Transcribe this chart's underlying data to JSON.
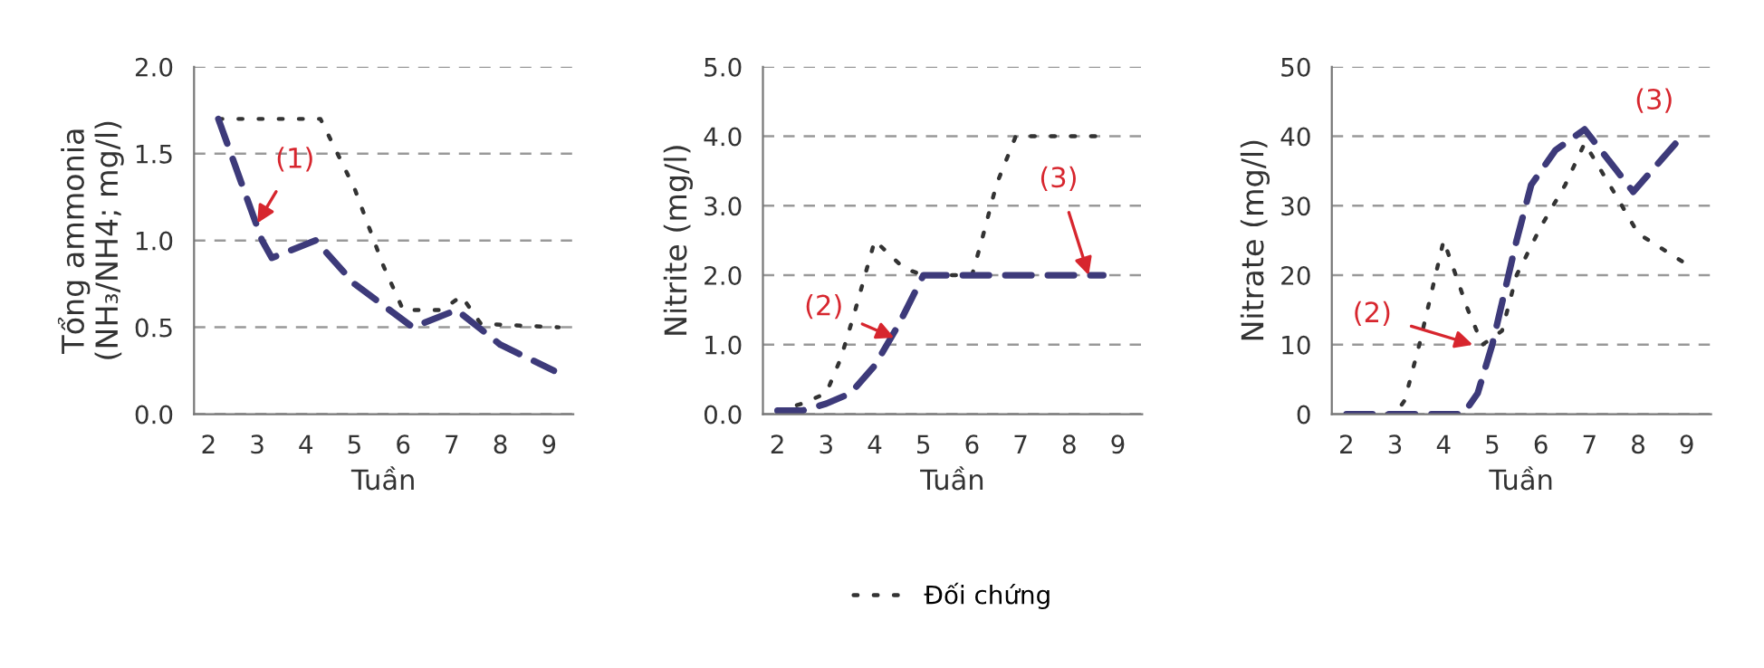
{
  "chart_data": [
    {
      "type": "line",
      "xlabel": "Tuần",
      "ylabel": "Tổng ammonia\n(NH₃/NH4; mg/l)",
      "xlim": [
        1.7,
        9.5
      ],
      "xticks": [
        2,
        3,
        4,
        5,
        6,
        7,
        8,
        9
      ],
      "ylim": [
        0,
        2
      ],
      "yticks": [
        {
          "value": 0,
          "label": "0.0"
        },
        {
          "value": 0.5,
          "label": "0.5"
        },
        {
          "value": 1,
          "label": "1.0"
        },
        {
          "value": 1.5,
          "label": "1.5"
        },
        {
          "value": 2,
          "label": "2.0"
        }
      ],
      "grid": "y",
      "legend": false,
      "annotations": [
        {
          "text": "(1)",
          "x": 3,
          "y": 1.1
        }
      ],
      "series": [
        {
          "color": "#333333",
          "line_style": "dotted",
          "x": [
            2.2,
            4.3,
            5,
            5.6,
            6.0,
            6.8,
            7.2,
            7.6,
            9.2
          ],
          "values": [
            1.7,
            1.7,
            1.3,
            0.85,
            0.6,
            0.6,
            0.68,
            0.52,
            0.5
          ]
        },
        {
          "color": "#3d3a7a",
          "line_style": "dashed",
          "x": [
            2.2,
            3.1,
            3.3,
            4.2,
            5,
            6.2,
            7.1,
            8,
            9.1
          ],
          "values": [
            1.7,
            1.0,
            0.9,
            1.0,
            0.75,
            0.5,
            0.6,
            0.4,
            0.25
          ]
        }
      ]
    },
    {
      "type": "line",
      "xlabel": "Tuần",
      "ylabel": "Nitrite (mg/l)",
      "xlim": [
        1.7,
        9.5
      ],
      "xticks": [
        2,
        3,
        4,
        5,
        6,
        7,
        8,
        9
      ],
      "ylim": [
        0,
        5
      ],
      "yticks": [
        {
          "value": 0,
          "label": "0.0"
        },
        {
          "value": 1,
          "label": "1.0"
        },
        {
          "value": 2,
          "label": "2.0"
        },
        {
          "value": 3,
          "label": "3.0"
        },
        {
          "value": 4,
          "label": "4.0"
        },
        {
          "value": 5,
          "label": "5.0"
        }
      ],
      "grid": "y",
      "legend": "bottom",
      "annotations": [
        {
          "text": "(2)",
          "x": 4.4,
          "y": 1.1
        },
        {
          "text": "(3)",
          "x": 8.4,
          "y": 2.0
        }
      ],
      "series": [
        {
          "name": "Đối chứng",
          "color": "#333333",
          "line_style": "dotted",
          "x": [
            2,
            2.5,
            3,
            3.3,
            3.6,
            4,
            4.3,
            4.6,
            5,
            6,
            6.2,
            6.5,
            6.9,
            8.7
          ],
          "values": [
            0.05,
            0.15,
            0.3,
            0.8,
            1.5,
            2.5,
            2.3,
            2.1,
            2.0,
            2.0,
            2.5,
            3.3,
            4.0,
            4.0
          ]
        },
        {
          "color": "#3d3a7a",
          "line_style": "dashed",
          "x": [
            2,
            2.5,
            3,
            3.5,
            4,
            4.5,
            5,
            8.7
          ],
          "values": [
            0.05,
            0.05,
            0.15,
            0.3,
            0.7,
            1.3,
            2.0,
            2.0
          ]
        }
      ]
    },
    {
      "type": "line",
      "xlabel": "Tuần",
      "ylabel": "Nitrate (mg/l)",
      "xlim": [
        1.7,
        9.5
      ],
      "xticks": [
        2,
        3,
        4,
        5,
        6,
        7,
        8,
        9
      ],
      "ylim": [
        0,
        50
      ],
      "yticks": [
        0,
        10,
        20,
        30,
        40,
        50
      ],
      "grid": "y",
      "legend": false,
      "annotations": [
        {
          "text": "(2)",
          "x": 4.6,
          "y": 10
        },
        "(3)"
      ],
      "series": [
        {
          "color": "#333333",
          "line_style": "dotted",
          "x": [
            2,
            3,
            3.2,
            3.5,
            4,
            4.5,
            4.8,
            5.2,
            5.5,
            6,
            6.5,
            6.9,
            7.5,
            8,
            8.9
          ],
          "values": [
            0,
            0,
            2,
            10,
            25,
            15,
            10,
            12,
            20,
            27,
            33,
            39,
            32,
            26,
            22
          ]
        },
        {
          "color": "#3d3a7a",
          "line_style": "dashed",
          "x": [
            2,
            4.4,
            4.7,
            5,
            5.5,
            5.8,
            6.3,
            6.9,
            7.9,
            8.9
          ],
          "values": [
            0,
            0,
            3,
            10,
            25,
            33,
            38,
            41,
            32,
            40
          ]
        }
      ]
    }
  ]
}
